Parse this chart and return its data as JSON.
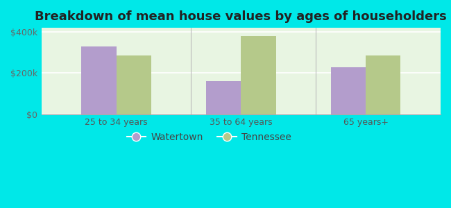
{
  "title": "Breakdown of mean house values by ages of householders",
  "categories": [
    "25 to 34 years",
    "35 to 64 years",
    "65 years+"
  ],
  "watertown_values": [
    330000,
    160000,
    230000
  ],
  "tennessee_values": [
    285000,
    380000,
    285000
  ],
  "watertown_color": "#b39dcc",
  "tennessee_color": "#b5c98a",
  "background_color": "#00e8e8",
  "plot_bg_top": "#e8f5e2",
  "plot_bg_bottom": "#f5fdf0",
  "ylim": [
    0,
    420000
  ],
  "yticks": [
    0,
    200000,
    400000
  ],
  "ytick_labels": [
    "$0",
    "$200k",
    "$400k"
  ],
  "bar_width": 0.28,
  "legend_watertown": "Watertown",
  "legend_tennessee": "Tennessee",
  "title_fontsize": 13,
  "tick_fontsize": 9,
  "legend_fontsize": 10
}
